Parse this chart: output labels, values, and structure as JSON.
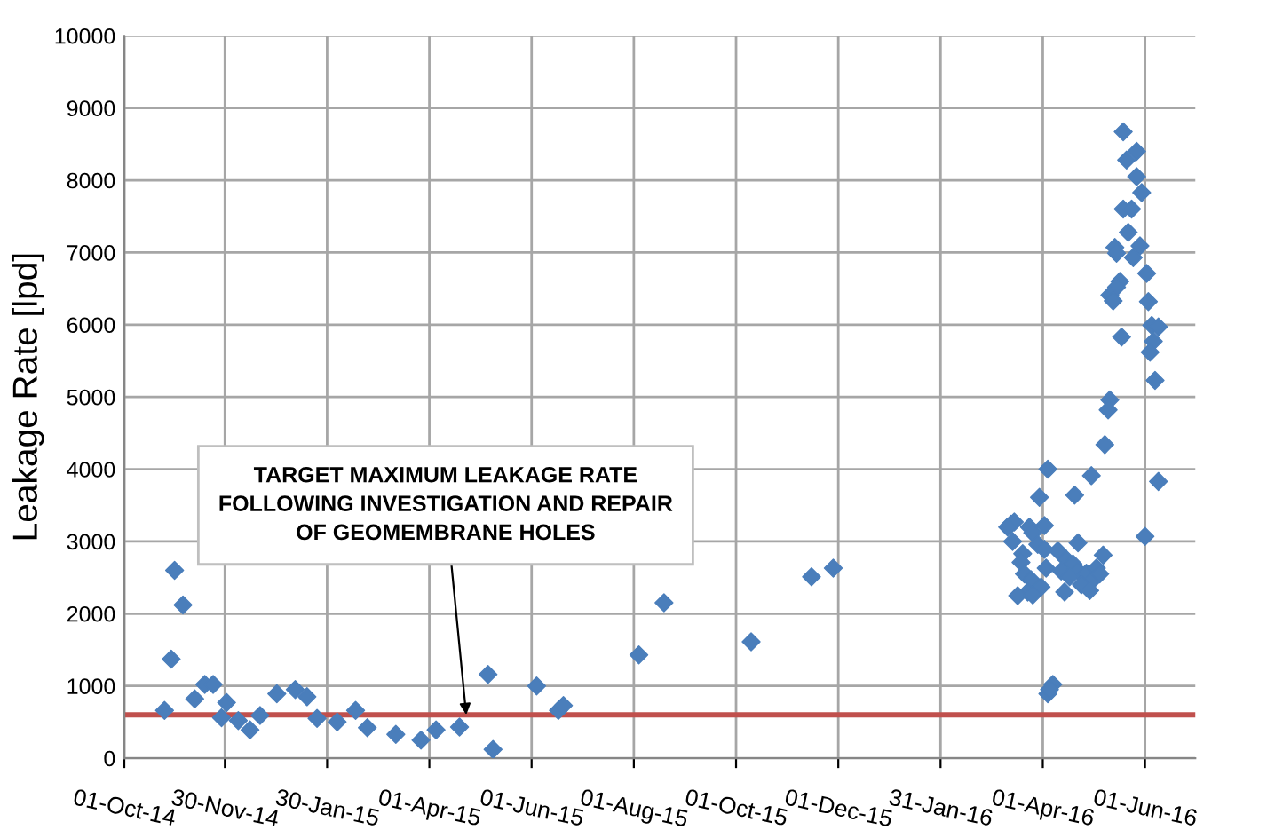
{
  "chart_data": {
    "type": "scatter",
    "ylabel": "Leakage Rate [lpd]",
    "marker": "diamond",
    "grid": true,
    "xlim": [
      "2014-10-01",
      "2016-07-01"
    ],
    "xticks": [
      {
        "value": "2014-10-01",
        "label": "01-Oct-14"
      },
      {
        "value": "2014-11-30",
        "label": "30-Nov-14"
      },
      {
        "value": "2015-01-30",
        "label": "30-Jan-15"
      },
      {
        "value": "2015-04-01",
        "label": "01-Apr-15"
      },
      {
        "value": "2015-06-01",
        "label": "01-Jun-15"
      },
      {
        "value": "2015-08-01",
        "label": "01-Aug-15"
      },
      {
        "value": "2015-10-01",
        "label": "01-Oct-15"
      },
      {
        "value": "2015-12-01",
        "label": "01-Dec-15"
      },
      {
        "value": "2016-01-31",
        "label": "31-Jan-16"
      },
      {
        "value": "2016-04-01",
        "label": "01-Apr-16"
      },
      {
        "value": "2016-06-01",
        "label": "01-Jun-16"
      }
    ],
    "ylim": [
      0,
      10000
    ],
    "yticks": [
      0,
      1000,
      2000,
      3000,
      4000,
      5000,
      6000,
      7000,
      8000,
      9000,
      10000
    ],
    "series": [
      {
        "color": "#4a7ebb",
        "x": [
          "2014-10-25",
          "2014-10-29",
          "2014-10-31",
          "2014-11-05",
          "2014-11-12",
          "2014-11-18",
          "2014-11-23",
          "2014-11-28",
          "2014-12-01",
          "2014-12-08",
          "2014-12-15",
          "2014-12-21",
          "2014-12-31",
          "2015-01-11",
          "2015-01-18",
          "2015-01-24",
          "2015-02-05",
          "2015-02-16",
          "2015-02-23",
          "2015-03-12",
          "2015-03-27",
          "2015-04-05",
          "2015-04-19",
          "2015-05-06",
          "2015-05-09",
          "2015-06-04",
          "2015-06-17",
          "2015-06-20",
          "2015-08-04",
          "2015-08-19",
          "2015-10-10",
          "2015-11-15",
          "2015-11-28",
          "2016-05-19",
          "2016-05-27",
          "2016-05-21",
          "2016-05-27",
          "2016-05-30",
          "2016-05-19",
          "2016-05-24",
          "2016-05-22",
          "2016-05-14",
          "2016-05-15",
          "2016-05-29",
          "2016-05-25",
          "2016-06-02",
          "2016-05-17",
          "2016-05-15",
          "2016-05-11",
          "2016-05-13",
          "2016-06-03",
          "2016-06-05",
          "2016-06-09",
          "2016-06-06",
          "2016-06-04",
          "2016-05-18",
          "2016-06-07",
          "2016-05-11",
          "2016-05-10",
          "2016-05-08",
          "2016-04-30",
          "2016-06-09",
          "2016-04-04",
          "2016-04-20",
          "2016-03-30",
          "2016-06-01",
          "2016-03-13",
          "2016-03-15",
          "2016-03-11",
          "2016-03-14",
          "2016-03-24",
          "2016-03-26",
          "2016-04-02",
          "2016-03-29",
          "2016-04-02",
          "2016-03-20",
          "2016-04-22",
          "2016-04-10",
          "2016-03-19",
          "2016-04-03",
          "2016-04-15",
          "2016-04-19",
          "2016-03-21",
          "2016-04-12",
          "2016-04-22",
          "2016-04-27",
          "2016-05-03",
          "2016-05-07",
          "2016-04-17",
          "2016-05-01",
          "2016-03-25",
          "2016-03-31",
          "2016-03-23",
          "2016-03-17",
          "2016-03-26",
          "2016-04-14",
          "2016-04-24",
          "2016-04-29",
          "2016-05-05",
          "2016-04-07",
          "2016-04-04",
          "2016-04-05"
        ],
        "values": [
          660,
          1370,
          2600,
          2120,
          820,
          1020,
          1020,
          560,
          770,
          520,
          390,
          590,
          890,
          950,
          850,
          550,
          500,
          660,
          420,
          330,
          250,
          390,
          430,
          1160,
          120,
          1000,
          660,
          730,
          1430,
          2150,
          1610,
          2510,
          2630,
          8670,
          8400,
          8280,
          8050,
          7830,
          7600,
          7600,
          7280,
          7070,
          6990,
          7090,
          6930,
          6710,
          6600,
          6520,
          6410,
          6330,
          6320,
          5990,
          5970,
          5770,
          5620,
          5830,
          5230,
          4960,
          4820,
          4340,
          3910,
          3830,
          4000,
          3640,
          3610,
          3070,
          3240,
          3270,
          3200,
          3000,
          3200,
          3120,
          3220,
          2960,
          2890,
          2830,
          2980,
          2870,
          2710,
          2630,
          2750,
          2690,
          2550,
          2590,
          2590,
          2560,
          2630,
          2810,
          2510,
          2470,
          2470,
          2370,
          2300,
          2250,
          2260,
          2300,
          2400,
          2320,
          2550,
          1020,
          890,
          950
        ]
      }
    ],
    "ref_lines": [
      {
        "axis": "y",
        "value": 600,
        "color": "#c0504d"
      }
    ],
    "annotations": [
      {
        "text": "TARGET MAXIMUM LEAKAGE RATE\nFOLLOWING INVESTIGATION AND REPAIR\nOF GEOMEMBRANE HOLES",
        "x": "2015-04-23",
        "y": 600
      }
    ]
  }
}
